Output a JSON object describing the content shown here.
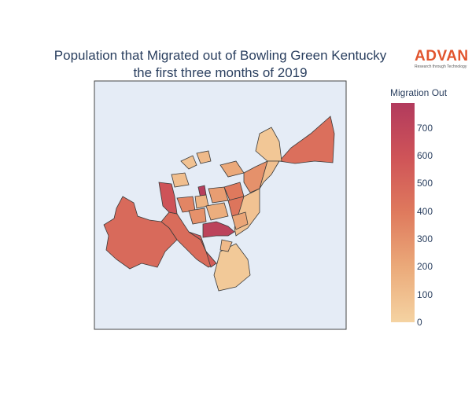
{
  "title": {
    "line1": "Population that Migrated out of Bowling Green Kentucky",
    "line2": "the first three months of 2019"
  },
  "logo": {
    "word": "ADVAN",
    "tagline": "Research through Technology"
  },
  "colorbar": {
    "title": "Migration Out",
    "ticks": [
      "0",
      "100",
      "200",
      "300",
      "400",
      "500",
      "600",
      "700"
    ],
    "min": 0,
    "max": 790,
    "colorscale": [
      "#f5d3a2",
      "#ebaa7a",
      "#df7a5d",
      "#cf5458",
      "#b23a5d"
    ]
  },
  "chart_data": {
    "type": "choropleth",
    "background": "#e5ecf6",
    "regions": [
      {
        "id": "west-large",
        "value": 480
      },
      {
        "id": "northeast-large",
        "value": 450
      },
      {
        "id": "southwest-strip",
        "value": 470
      },
      {
        "id": "south-strip",
        "value": 550
      },
      {
        "id": "downtown-dark",
        "value": 720
      },
      {
        "id": "central-dark",
        "value": 760
      },
      {
        "id": "west-mid",
        "value": 600
      },
      {
        "id": "east-mid",
        "value": 300
      },
      {
        "id": "north-1",
        "value": 80
      },
      {
        "id": "north-2",
        "value": 120
      },
      {
        "id": "north-3",
        "value": 200
      },
      {
        "id": "north-4",
        "value": 60
      },
      {
        "id": "center-1",
        "value": 350
      },
      {
        "id": "center-2",
        "value": 150
      },
      {
        "id": "center-3",
        "value": 250
      },
      {
        "id": "center-4",
        "value": 400
      },
      {
        "id": "center-5",
        "value": 100
      },
      {
        "id": "center-6",
        "value": 300
      },
      {
        "id": "center-7",
        "value": 180
      },
      {
        "id": "center-8",
        "value": 420
      },
      {
        "id": "south-1",
        "value": 50
      },
      {
        "id": "south-2",
        "value": 120
      },
      {
        "id": "east-strip",
        "value": 80
      },
      {
        "id": "east-2",
        "value": 220
      },
      {
        "id": "ne-strip",
        "value": 90
      }
    ]
  }
}
